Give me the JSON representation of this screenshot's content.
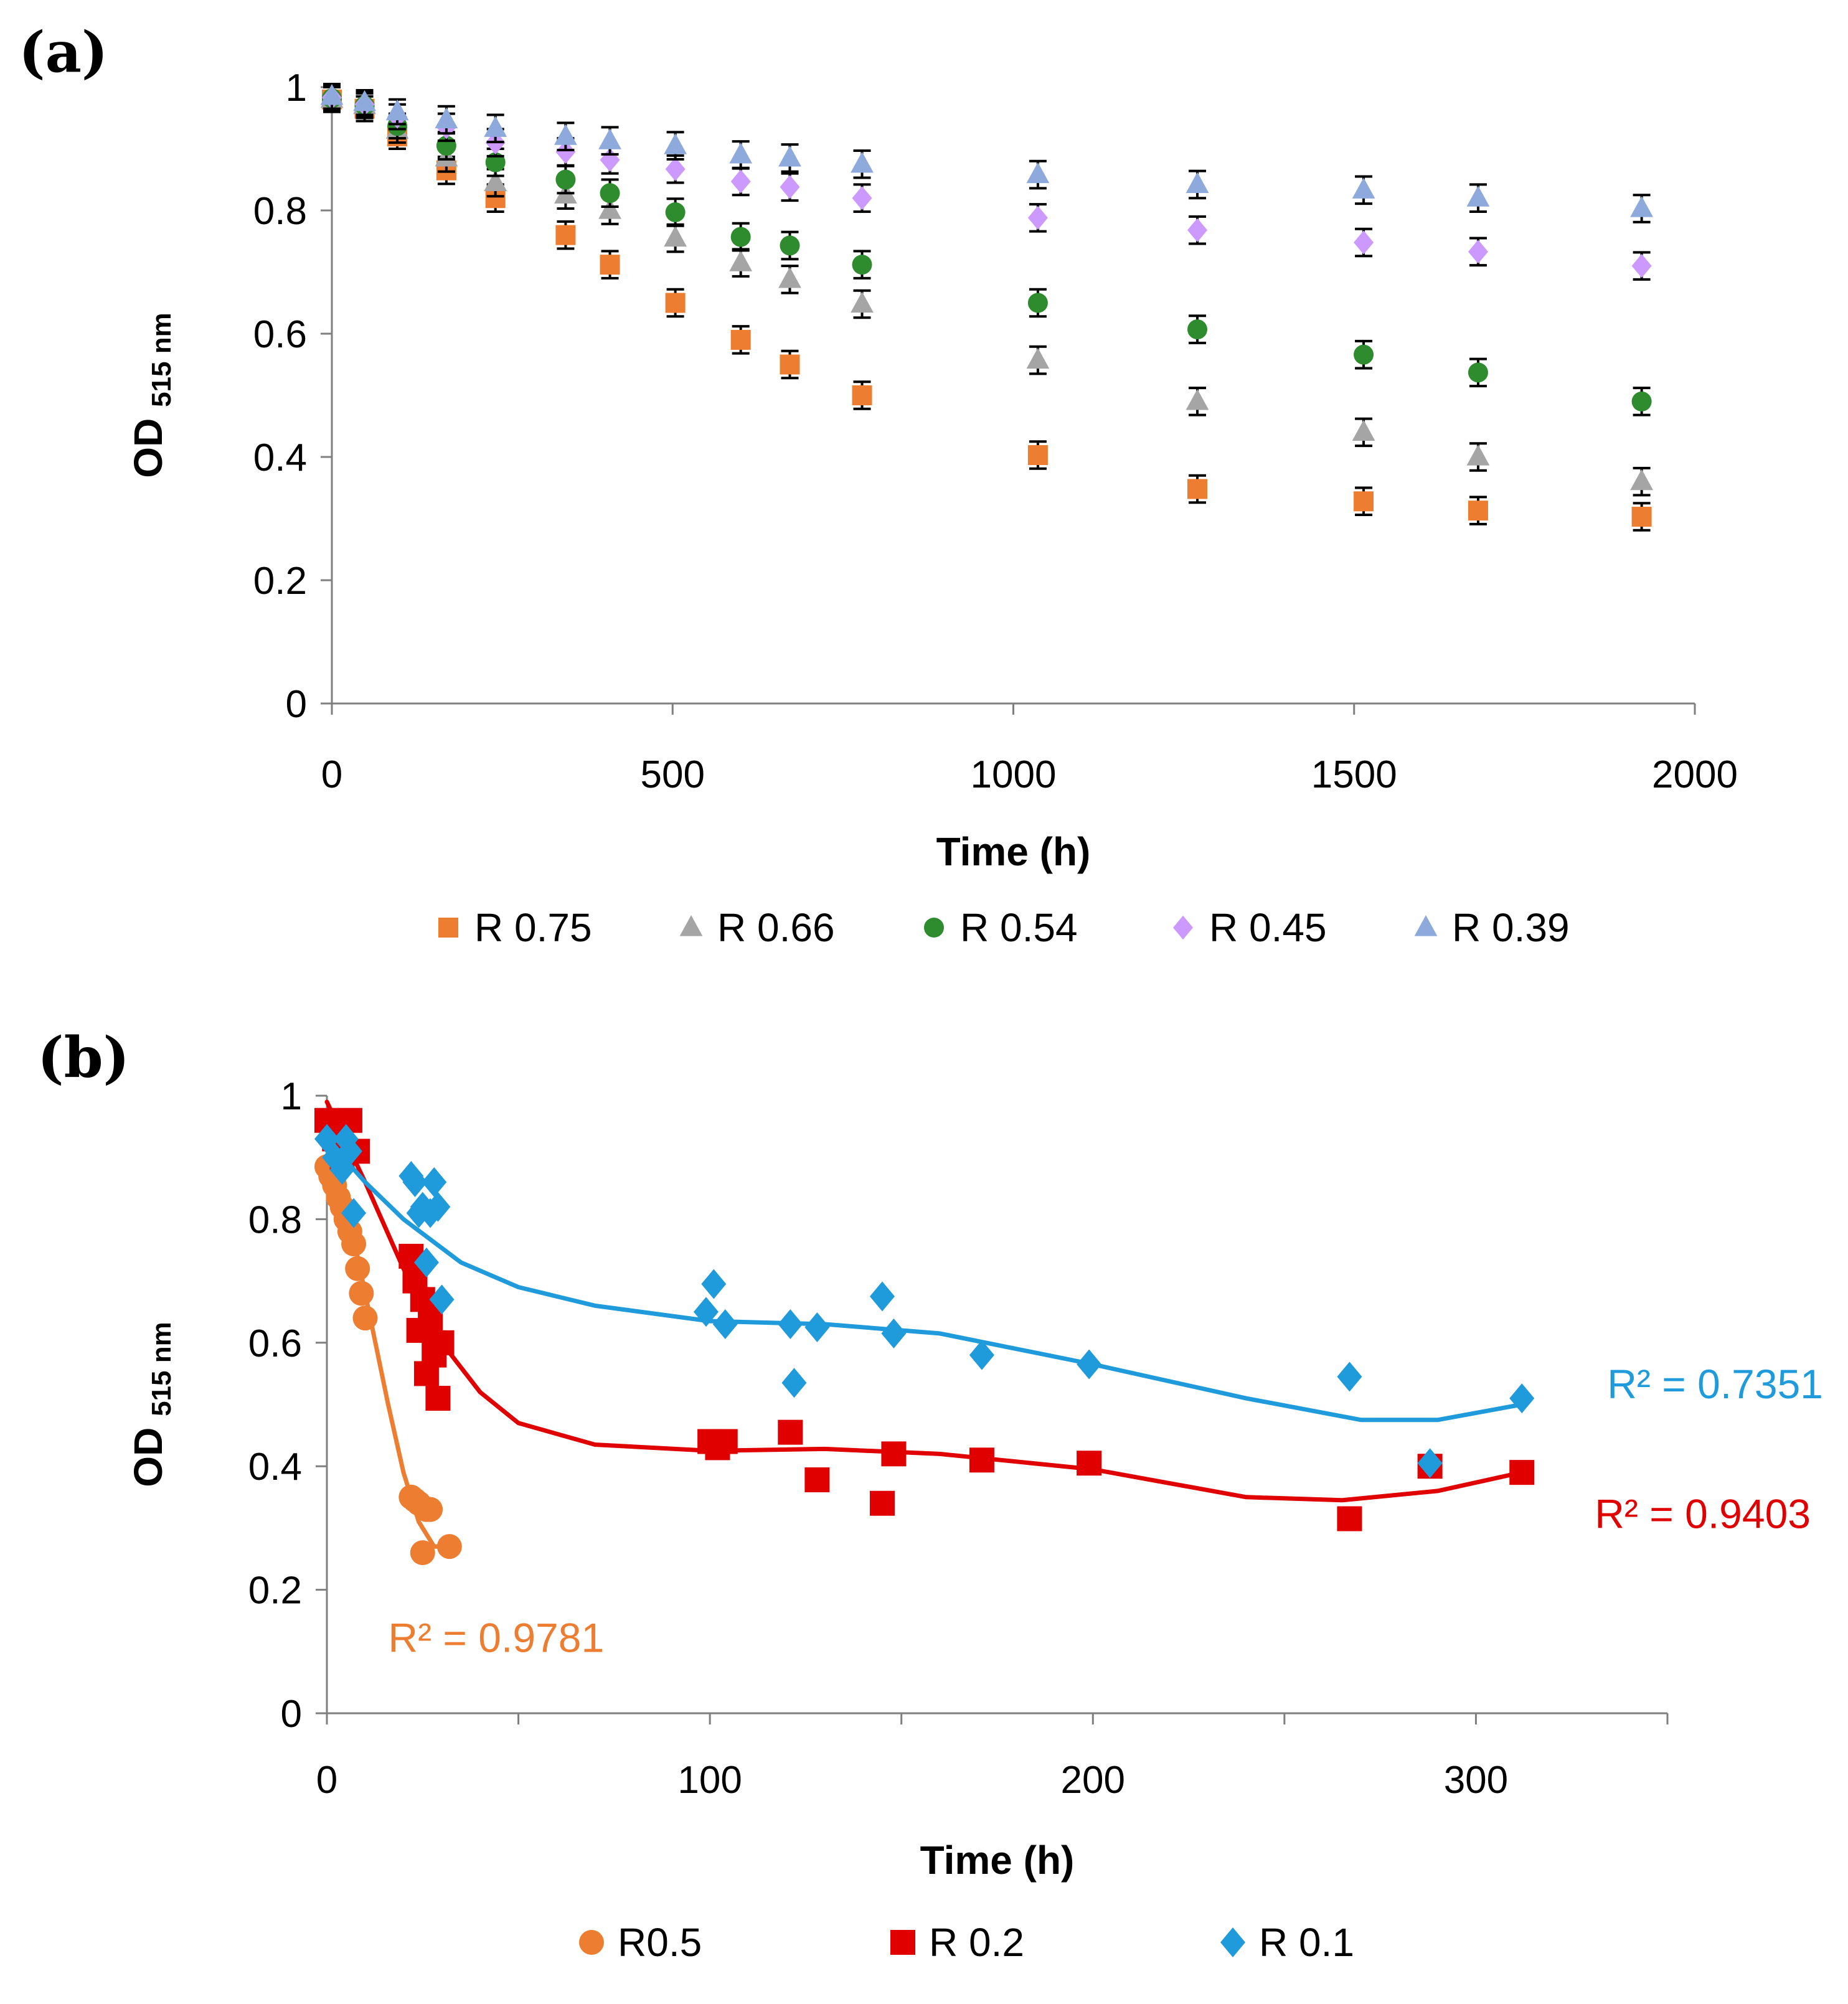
{
  "chart_data": [
    {
      "panel_label": "(a)",
      "type": "scatter",
      "xlabel": "Time (h)",
      "ylabel_main": "OD",
      "ylabel_sub": "515 nm",
      "xlim": [
        0,
        2000
      ],
      "ylim": [
        0,
        1
      ],
      "xticks": [
        "0",
        "500",
        "1000",
        "1500",
        "2000"
      ],
      "yticks": [
        "0",
        "0.2",
        "0.4",
        "0.6",
        "0.8",
        "1"
      ],
      "grid": false,
      "legend_position": "bottom",
      "x": [
        0,
        48,
        96,
        168,
        240,
        343,
        408,
        504,
        600,
        672,
        778,
        1036,
        1270,
        1514,
        1682,
        1922
      ],
      "series": [
        {
          "name": "R 0.75",
          "marker": "square",
          "color": "#ED7D31",
          "values": [
            0.98,
            0.965,
            0.92,
            0.865,
            0.82,
            0.76,
            0.712,
            0.65,
            0.59,
            0.55,
            0.5,
            0.403,
            0.348,
            0.328,
            0.313,
            0.303
          ],
          "errors": [
            0.02,
            0.02,
            0.02,
            0.022,
            0.022,
            0.022,
            0.022,
            0.022,
            0.022,
            0.022,
            0.022,
            0.022,
            0.022,
            0.022,
            0.022,
            0.022
          ]
        },
        {
          "name": "R 0.66",
          "marker": "triangle",
          "color": "#A5A5A5",
          "values": [
            0.98,
            0.97,
            0.93,
            0.885,
            0.845,
            0.825,
            0.8,
            0.755,
            0.715,
            0.688,
            0.648,
            0.557,
            0.49,
            0.44,
            0.4,
            0.36
          ],
          "errors": [
            0.02,
            0.02,
            0.02,
            0.022,
            0.022,
            0.022,
            0.022,
            0.022,
            0.022,
            0.022,
            0.022,
            0.022,
            0.022,
            0.022,
            0.022,
            0.022
          ]
        },
        {
          "name": "R 0.54",
          "marker": "circle",
          "color": "#2E8B2E",
          "values": [
            0.982,
            0.97,
            0.937,
            0.905,
            0.878,
            0.85,
            0.828,
            0.797,
            0.757,
            0.743,
            0.712,
            0.65,
            0.607,
            0.566,
            0.537,
            0.49
          ],
          "errors": [
            0.02,
            0.02,
            0.02,
            0.022,
            0.022,
            0.022,
            0.022,
            0.022,
            0.022,
            0.022,
            0.022,
            0.022,
            0.022,
            0.022,
            0.022,
            0.022
          ]
        },
        {
          "name": "R 0.45",
          "marker": "diamond",
          "color": "#CC99FF",
          "values": [
            0.983,
            0.972,
            0.952,
            0.935,
            0.91,
            0.895,
            0.882,
            0.867,
            0.847,
            0.838,
            0.82,
            0.788,
            0.768,
            0.748,
            0.733,
            0.71
          ],
          "errors": [
            0.02,
            0.02,
            0.02,
            0.022,
            0.022,
            0.022,
            0.022,
            0.022,
            0.022,
            0.022,
            0.022,
            0.022,
            0.022,
            0.022,
            0.022,
            0.022
          ]
        },
        {
          "name": "R 0.39",
          "marker": "triangle",
          "color": "#8EA9DB",
          "values": [
            0.985,
            0.975,
            0.96,
            0.947,
            0.933,
            0.92,
            0.913,
            0.905,
            0.89,
            0.885,
            0.875,
            0.858,
            0.842,
            0.833,
            0.82,
            0.803
          ],
          "errors": [
            0.02,
            0.02,
            0.02,
            0.022,
            0.022,
            0.022,
            0.022,
            0.022,
            0.022,
            0.022,
            0.022,
            0.022,
            0.022,
            0.022,
            0.022,
            0.022
          ]
        }
      ]
    },
    {
      "panel_label": "(b)",
      "type": "scatter",
      "xlabel": "Time (h)",
      "ylabel_main": "OD",
      "ylabel_sub": "515 nm",
      "xlim": [
        0,
        350
      ],
      "ylim": [
        0,
        1
      ],
      "xticks": [
        "0",
        "100",
        "200",
        "300"
      ],
      "yticks": [
        "0",
        "0.2",
        "0.4",
        "0.6",
        "0.8",
        "1"
      ],
      "grid": false,
      "legend_position": "bottom",
      "series": [
        {
          "name": "R0.5",
          "marker": "circle",
          "color": "#ED7D31",
          "x": [
            0,
            1,
            2,
            3,
            4,
            5,
            6,
            7,
            8,
            9,
            10,
            22,
            23,
            24,
            25,
            26,
            27,
            32
          ],
          "y": [
            0.885,
            0.87,
            0.855,
            0.835,
            0.82,
            0.8,
            0.78,
            0.76,
            0.72,
            0.68,
            0.64,
            0.35,
            0.345,
            0.34,
            0.26,
            0.33,
            0.33,
            0.27
          ],
          "fit": [
            [
              0,
              0.9
            ],
            [
              4,
              0.86
            ],
            [
              8,
              0.74
            ],
            [
              12,
              0.62
            ],
            [
              16,
              0.5
            ],
            [
              20,
              0.39
            ],
            [
              24,
              0.31
            ],
            [
              28,
              0.27
            ],
            [
              32,
              0.27
            ]
          ],
          "r2_label": "R² = 0.9781"
        },
        {
          "name": "R 0.2",
          "marker": "square",
          "color": "#E00000",
          "x": [
            0,
            2,
            4,
            6,
            8,
            22,
            23,
            24,
            25,
            26,
            27,
            28,
            29,
            30,
            100,
            102,
            104,
            121,
            128,
            145,
            148,
            171,
            199,
            267,
            288,
            312
          ],
          "y": [
            0.96,
            0.93,
            0.9,
            0.96,
            0.91,
            0.74,
            0.7,
            0.62,
            0.67,
            0.55,
            0.64,
            0.58,
            0.51,
            0.6,
            0.44,
            0.43,
            0.44,
            0.455,
            0.378,
            0.34,
            0.42,
            0.41,
            0.405,
            0.315,
            0.4,
            0.39
          ],
          "fit": [
            [
              0,
              0.99
            ],
            [
              10,
              0.86
            ],
            [
              20,
              0.72
            ],
            [
              30,
              0.6
            ],
            [
              40,
              0.52
            ],
            [
              50,
              0.47
            ],
            [
              70,
              0.435
            ],
            [
              100,
              0.425
            ],
            [
              130,
              0.428
            ],
            [
              160,
              0.42
            ],
            [
              200,
              0.395
            ],
            [
              240,
              0.35
            ],
            [
              265,
              0.345
            ],
            [
              290,
              0.36
            ],
            [
              312,
              0.39
            ]
          ],
          "r2_label": "R² = 0.9403"
        },
        {
          "name": "R 0.1",
          "marker": "diamond",
          "color": "#1F9BDB",
          "x": [
            0,
            2,
            4,
            5,
            6,
            7,
            22,
            23,
            24,
            25,
            26,
            27,
            28,
            29,
            30,
            99,
            101,
            104,
            121,
            122,
            128,
            145,
            148,
            171,
            199,
            267,
            288,
            312
          ],
          "y": [
            0.93,
            0.9,
            0.88,
            0.93,
            0.91,
            0.81,
            0.87,
            0.86,
            0.81,
            0.82,
            0.73,
            0.81,
            0.86,
            0.82,
            0.67,
            0.65,
            0.695,
            0.63,
            0.63,
            0.535,
            0.625,
            0.675,
            0.615,
            0.58,
            0.565,
            0.545,
            0.405,
            0.51
          ],
          "fit": [
            [
              0,
              0.93
            ],
            [
              10,
              0.86
            ],
            [
              20,
              0.8
            ],
            [
              35,
              0.73
            ],
            [
              50,
              0.69
            ],
            [
              70,
              0.66
            ],
            [
              100,
              0.635
            ],
            [
              130,
              0.63
            ],
            [
              160,
              0.615
            ],
            [
              200,
              0.565
            ],
            [
              240,
              0.51
            ],
            [
              270,
              0.475
            ],
            [
              290,
              0.475
            ],
            [
              312,
              0.5
            ]
          ],
          "r2_label": "R² = 0.7351"
        }
      ]
    }
  ]
}
